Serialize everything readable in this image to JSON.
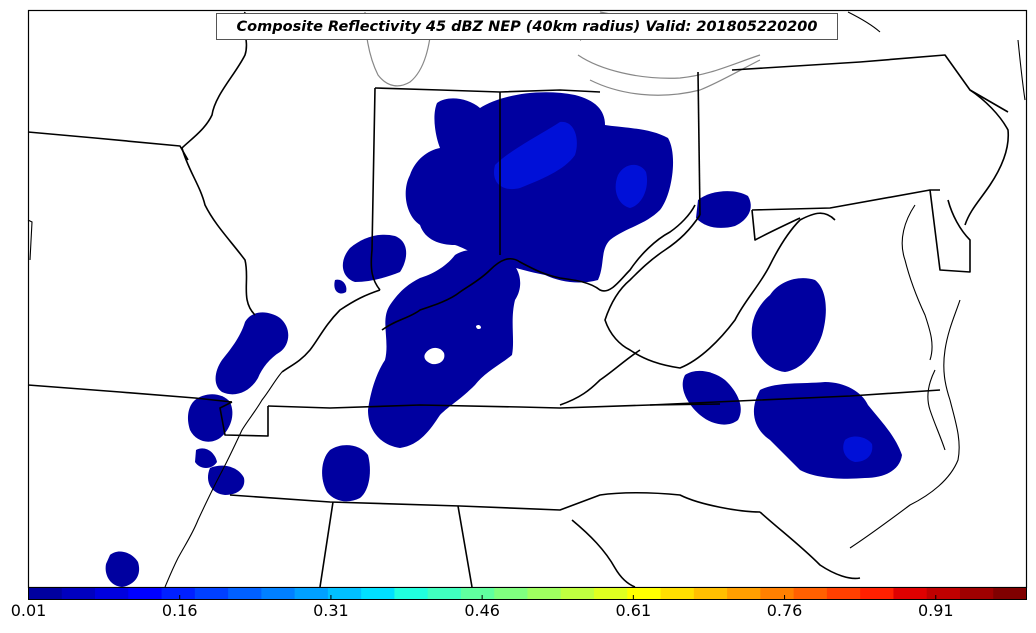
{
  "title": "Composite Reflectivity 45 dBZ NEP (40km radius) Valid: 201805220200",
  "colorbar": {
    "min": 0.01,
    "max": 1.0,
    "colors": [
      "#00009f",
      "#0000bf",
      "#0000df",
      "#0000ff",
      "#0020ff",
      "#0040ff",
      "#0060ff",
      "#0080ff",
      "#00a0ff",
      "#00c0ff",
      "#00e0ff",
      "#20ffdf",
      "#40ffbf",
      "#60ff9f",
      "#80ff7f",
      "#9fff60",
      "#bfff40",
      "#dfff20",
      "#ffff00",
      "#ffdf00",
      "#ffbf00",
      "#ff9f00",
      "#ff8000",
      "#ff6000",
      "#ff4000",
      "#ff2000",
      "#df0000",
      "#bf0000",
      "#9f0000",
      "#800000"
    ],
    "tick_labels": [
      "0.01",
      "0.16",
      "0.31",
      "0.46",
      "0.61",
      "0.76",
      "0.91"
    ]
  },
  "probability_colors": {
    "low": "#0000a0",
    "mid": "#0010d8"
  }
}
